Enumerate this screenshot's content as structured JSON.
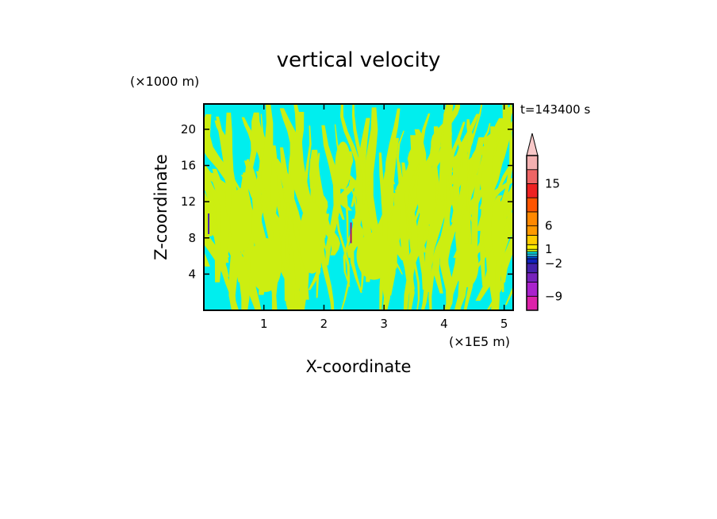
{
  "chart_data": {
    "type": "heatmap",
    "title": "vertical velocity",
    "xlabel": "X-coordinate",
    "ylabel": "Z-coordinate",
    "x_unit": "(×1E5 m)",
    "y_unit": "(×1000 m)",
    "time_label": "t=143400 s",
    "xlim": [
      0,
      5.15
    ],
    "ylim": [
      0,
      22.8
    ],
    "x_ticks": [
      1,
      2,
      3,
      4,
      5
    ],
    "y_ticks": [
      4,
      8,
      12,
      16,
      20
    ],
    "grid": false,
    "colorbar": {
      "position": "right",
      "label_values": [
        "15",
        "6",
        "1",
        "−2",
        "−9"
      ],
      "levels": [
        -12,
        -9,
        -6,
        -4,
        -2,
        -1,
        -0.5,
        0,
        0.5,
        1,
        2,
        4,
        6,
        9,
        12,
        15,
        18,
        21
      ],
      "colors": [
        "#dd22aa",
        "#aa22cc",
        "#7722bb",
        "#4422aa",
        "#1122bb",
        "#0055dd",
        "#33c8ee",
        "#00eeee",
        "#ccee11",
        "#ffee00",
        "#ffcc00",
        "#ff9900",
        "#ff8800",
        "#ff5500",
        "#ee2222",
        "#ee6666",
        "#f4b0b0",
        "#f8c8c8"
      ],
      "extend_max": true
    },
    "dominant_fields": {
      "negative_color": "#00eeee",
      "positive_color": "#ccee11"
    }
  }
}
